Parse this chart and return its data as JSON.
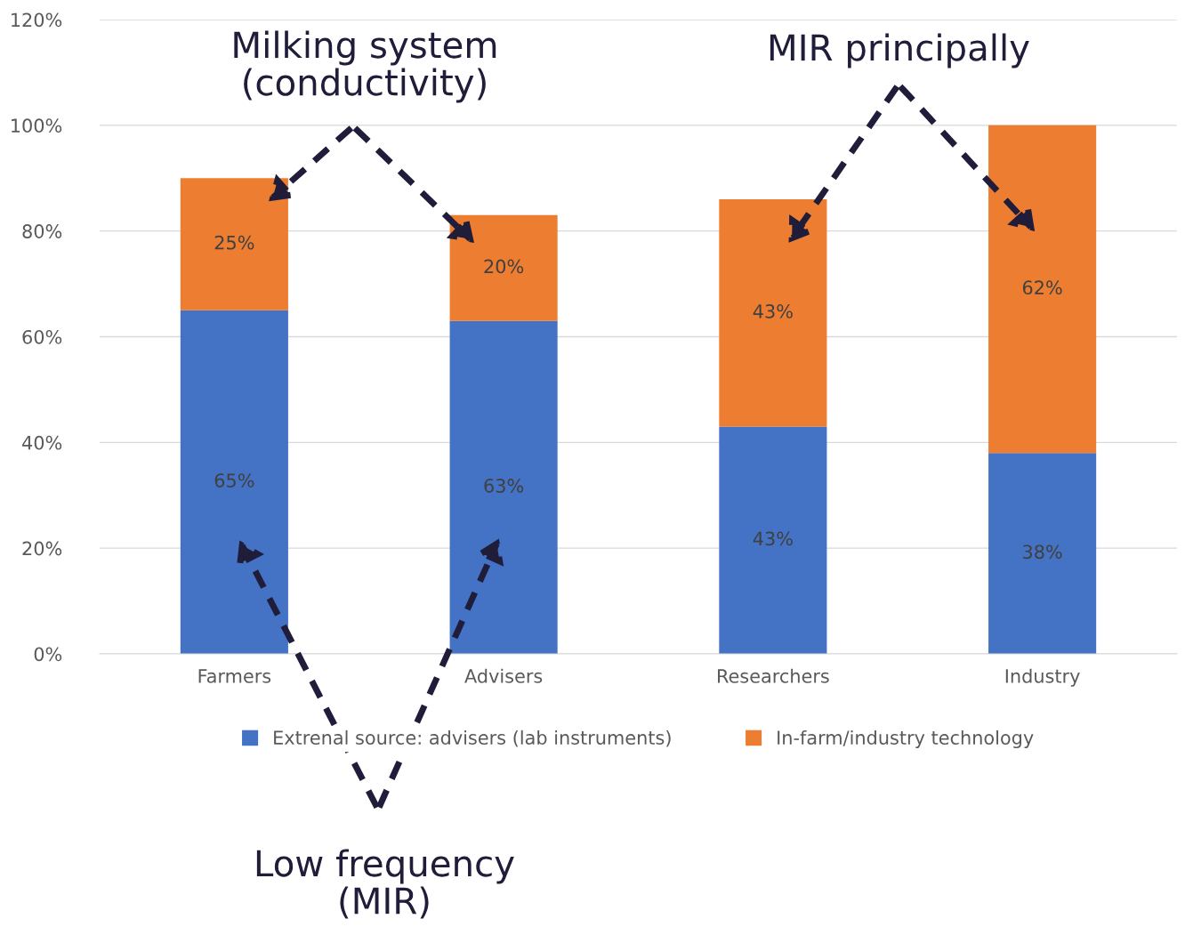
{
  "chart_data": {
    "type": "bar",
    "stacked": true,
    "categories": [
      "Farmers",
      "Advisers",
      "Researchers",
      "Industry"
    ],
    "series": [
      {
        "name": "Extrenal source: advisers (lab instruments)",
        "color": "#4472c4",
        "values": [
          65,
          63,
          43,
          38
        ],
        "value_labels": [
          "65%",
          "63%",
          "43%",
          "38%"
        ]
      },
      {
        "name": "In-farm/industry technology",
        "color": "#ed7d31",
        "values": [
          25,
          20,
          43,
          62
        ],
        "value_labels": [
          "25%",
          "20%",
          "43%",
          "62%"
        ]
      }
    ],
    "ylim": [
      0,
      120
    ],
    "yticks": [
      {
        "value": 0,
        "label": "0%"
      },
      {
        "value": 20,
        "label": "20%"
      },
      {
        "value": 40,
        "label": "40%"
      },
      {
        "value": 60,
        "label": "60%"
      },
      {
        "value": 80,
        "label": "80%"
      },
      {
        "value": 100,
        "label": "100%"
      },
      {
        "value": 120,
        "label": "120%"
      }
    ],
    "grid": "y",
    "legend": "bottom",
    "annotations": [
      "Milking system\n(conductivity)",
      "MIR principally",
      "Low frequency\n(MIR)"
    ]
  }
}
